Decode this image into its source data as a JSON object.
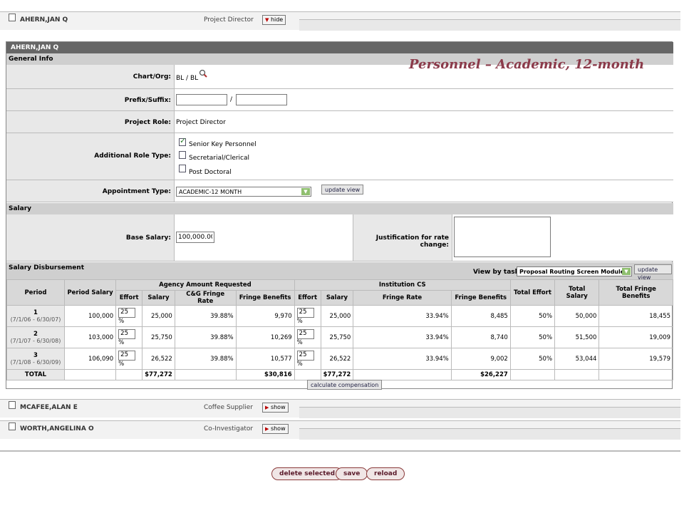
{
  "persons": [
    {
      "name": "AHERN,JAN Q",
      "role": "Project Director",
      "toggle": "hide"
    },
    {
      "name": "MCAFEE,ALAN E",
      "role": "Coffee Supplier",
      "toggle": "show"
    },
    {
      "name": "WORTH,ANGELINA O",
      "role": "Co-Investigator",
      "toggle": "show"
    }
  ],
  "section_title": "AHERN,JAN Q",
  "overlay_title": "Personnel – Academic, 12-month",
  "general": {
    "header": "General Info",
    "chart_org_label": "Chart/Org:",
    "chart_org_value": "BL / BL",
    "prefix_label": "Prefix/Suffix:",
    "prefix_sep": "/",
    "project_role_label": "Project Role:",
    "project_role_value": "Project Director",
    "additional_role_label": "Additional Role Type:",
    "roles": [
      {
        "label": "Senior Key Personnel",
        "checked": true
      },
      {
        "label": "Secretarial/Clerical",
        "checked": false
      },
      {
        "label": "Post Doctoral",
        "checked": false
      }
    ],
    "appointment_label": "Appointment Type:",
    "appointment_value": "ACADEMIC-12 MONTH",
    "update_view": "update view"
  },
  "salary": {
    "header": "Salary",
    "base_label": "Base Salary:",
    "base_value": "100,000.00",
    "justification_label": "Justification for rate change:"
  },
  "disbursement": {
    "header": "Salary Disbursement",
    "view_label": "View by task:",
    "view_value": "Proposal Routing Screen Module",
    "update_view": "update view",
    "col_period": "Period",
    "col_period_salary": "Period Salary",
    "grp_agency": "Agency Amount Requested",
    "grp_inst": "Institution CS",
    "col_effort": "Effort",
    "col_salary": "Salary",
    "col_cg_rate": "C&G Fringe Rate",
    "col_fringe_benefits": "Fringe Benefits",
    "col_fringe_rate": "Fringe Rate",
    "col_total_effort": "Total Effort",
    "col_total_salary": "Total Salary",
    "col_total_fringe": "Total Fringe Benefits",
    "pct": "%",
    "rows": [
      {
        "num": "1",
        "range": "(7/1/06 - 6/30/07)",
        "period_salary": "100,000",
        "a_effort": "25",
        "a_salary": "25,000",
        "a_rate": "39.88%",
        "a_fringe": "9,970",
        "i_effort": "25",
        "i_salary": "25,000",
        "i_rate": "33.94%",
        "i_fringe": "8,485",
        "t_effort": "50%",
        "t_salary": "50,000",
        "t_fringe": "18,455"
      },
      {
        "num": "2",
        "range": "(7/1/07 - 6/30/08)",
        "period_salary": "103,000",
        "a_effort": "25",
        "a_salary": "25,750",
        "a_rate": "39.88%",
        "a_fringe": "10,269",
        "i_effort": "25",
        "i_salary": "25,750",
        "i_rate": "33.94%",
        "i_fringe": "8,740",
        "t_effort": "50%",
        "t_salary": "51,500",
        "t_fringe": "19,009"
      },
      {
        "num": "3",
        "range": "(7/1/08 - 6/30/09)",
        "period_salary": "106,090",
        "a_effort": "25",
        "a_salary": "26,522",
        "a_rate": "39.88%",
        "a_fringe": "10,577",
        "i_effort": "25",
        "i_salary": "26,522",
        "i_rate": "33.94%",
        "i_fringe": "9,002",
        "t_effort": "50%",
        "t_salary": "53,044",
        "t_fringe": "19,579"
      }
    ],
    "total_label": "TOTAL",
    "total_a_salary": "$77,272",
    "total_a_fringe": "$30,816",
    "total_i_salary": "$77,272",
    "total_i_fringe": "$26,227",
    "calc_button": "calculate compensation"
  },
  "actions": {
    "delete": "delete selected",
    "save": "save",
    "reload": "reload"
  }
}
